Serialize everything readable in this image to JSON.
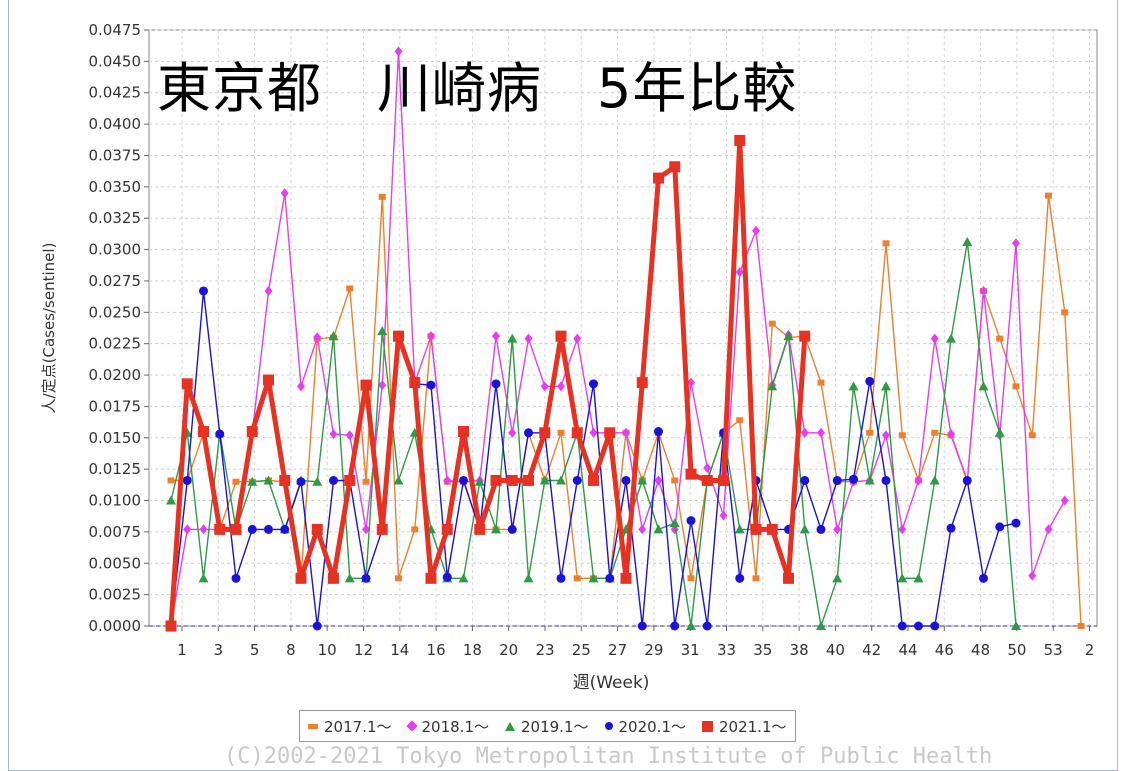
{
  "chart_data": {
    "type": "line",
    "title": "東京都　川崎病　5年比較",
    "xlabel": "週(Week)",
    "ylabel": "人/定点(Cases/sentinel)",
    "ylim": [
      0,
      0.0475
    ],
    "yticks": [
      "0.0000",
      "0.0025",
      "0.0050",
      "0.0075",
      "0.0100",
      "0.0125",
      "0.0150",
      "0.0175",
      "0.0200",
      "0.0225",
      "0.0250",
      "0.0275",
      "0.0300",
      "0.0325",
      "0.0350",
      "0.0375",
      "0.0400",
      "0.0425",
      "0.0450",
      "0.0475"
    ],
    "xtick_labels": [
      "1",
      "3",
      "5",
      "8",
      "10",
      "12",
      "14",
      "16",
      "18",
      "20",
      "23",
      "25",
      "27",
      "29",
      "31",
      "33",
      "35",
      "38",
      "40",
      "42",
      "44",
      "46",
      "48",
      "50",
      "53",
      "2"
    ],
    "grid": true,
    "legend_position": "bottom",
    "series": [
      {
        "name": "2017.1～",
        "color": "#ee7f2d",
        "marker": "square",
        "values": [
          0.0116,
          0.0116,
          0.0154,
          0.0077,
          0.0115,
          0.0115,
          0.0116,
          0.0115,
          0.0038,
          0.0229,
          0.023,
          0.0269,
          0.0115,
          0.0342,
          0.0038,
          0.0077,
          0.0231,
          0.0115,
          0.0115,
          0.0077,
          0.0077,
          0.0077,
          0.0154,
          0.0116,
          0.0154,
          0.0038,
          0.0038,
          0.0038,
          0.0154,
          0.0116,
          0.0154,
          0.0116,
          0.0038,
          0.0116,
          0.0154,
          0.0164,
          0.0038,
          0.0241,
          0.023,
          0.0231,
          0.0194,
          0.0115,
          0.0115,
          0.0154,
          0.0305,
          0.0152,
          0.0116,
          0.0154,
          0.0152,
          0.0115,
          0.0267,
          0.0229,
          0.0191,
          0.0152,
          0.0343,
          0.025,
          0.0
        ]
      },
      {
        "name": "2018.1～",
        "color": "#e53ef0",
        "marker": "diamond",
        "values": [
          0.0,
          0.0077,
          0.0077,
          0.0077,
          0.0077,
          0.0154,
          0.0267,
          0.0345,
          0.0191,
          0.023,
          0.0153,
          0.0152,
          0.0077,
          0.0192,
          0.0458,
          0.0194,
          0.0231,
          0.0116,
          0.0115,
          0.0116,
          0.0231,
          0.0154,
          0.0229,
          0.0191,
          0.0191,
          0.0229,
          0.0154,
          0.0154,
          0.0154,
          0.0077,
          0.0116,
          0.0077,
          0.0194,
          0.0126,
          0.0088,
          0.0282,
          0.0315,
          0.0192,
          0.0232,
          0.0154,
          0.0154,
          0.0077,
          0.0115,
          0.0116,
          0.0152,
          0.0077,
          0.0116,
          0.0229,
          0.0153,
          0.0116,
          0.0267,
          0.0152,
          0.0305,
          0.004,
          0.0077,
          0.01
        ]
      },
      {
        "name": "2019.1～",
        "color": "#2e9a45",
        "marker": "triangle",
        "values": [
          0.01,
          0.0154,
          0.0038,
          0.0154,
          0.0077,
          0.0115,
          0.0116,
          0.0077,
          0.0116,
          0.0115,
          0.0231,
          0.0038,
          0.0038,
          0.0235,
          0.0116,
          0.0154,
          0.0077,
          0.0038,
          0.0038,
          0.0115,
          0.0077,
          0.0229,
          0.0038,
          0.0116,
          0.0116,
          0.0154,
          0.0038,
          0.0038,
          0.0077,
          0.0116,
          0.0077,
          0.0082,
          0.0,
          0.0116,
          0.0154,
          0.0077,
          0.0077,
          0.0191,
          0.0231,
          0.0077,
          0.0,
          0.0038,
          0.0191,
          0.0116,
          0.0191,
          0.0038,
          0.0038,
          0.0116,
          0.0229,
          0.0306,
          0.0191,
          0.0154,
          0.0
        ]
      },
      {
        "name": "2020.1～",
        "color": "#1a12d6",
        "marker": "circle",
        "values": [
          0.0,
          0.0116,
          0.0267,
          0.0153,
          0.0038,
          0.0077,
          0.0077,
          0.0077,
          0.0115,
          0.0,
          0.0116,
          0.0116,
          0.0038,
          0.0077,
          0.0231,
          0.0193,
          0.0192,
          0.0039,
          0.0116,
          0.0077,
          0.0193,
          0.0077,
          0.0154,
          0.0154,
          0.0038,
          0.0116,
          0.0193,
          0.0038,
          0.0116,
          0.0,
          0.0155,
          0.0,
          0.0084,
          0.0,
          0.0154,
          0.0038,
          0.0116,
          0.0077,
          0.0077,
          0.0116,
          0.0077,
          0.0116,
          0.0117,
          0.0195,
          0.0116,
          0.0,
          0.0,
          0.0,
          0.0078,
          0.0116,
          0.0038,
          0.0079,
          0.0082
        ]
      },
      {
        "name": "2021.1～",
        "color": "#e63222",
        "marker": "square-large",
        "values": [
          0.0,
          0.0193,
          0.0155,
          0.0077,
          0.0077,
          0.0155,
          0.0196,
          0.0116,
          0.0038,
          0.0077,
          0.0038,
          0.0116,
          0.0192,
          0.0077,
          0.0231,
          0.0194,
          0.0038,
          0.0077,
          0.0155,
          0.0077,
          0.0116,
          0.0116,
          0.0116,
          0.0154,
          0.0231,
          0.0154,
          0.0116,
          0.0154,
          0.0038,
          0.0194,
          0.0357,
          0.0366,
          0.0121,
          0.0116,
          0.0116,
          0.0387,
          0.0077,
          0.0077,
          0.0038,
          0.0231
        ]
      }
    ]
  },
  "credit": "(C)2002-2021 Tokyo Metropolitan Institute of Public Health"
}
